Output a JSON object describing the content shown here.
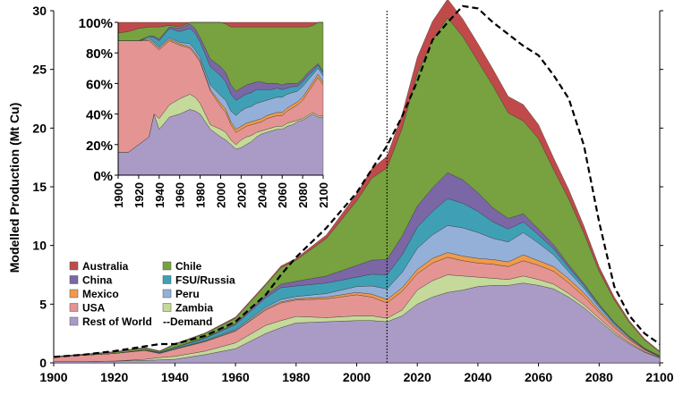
{
  "chart_data": [
    {
      "type": "area",
      "stacked": true,
      "title": "",
      "xlabel": "",
      "ylabel": "Modelled Production (Mt Cu)",
      "xlim": [
        1900,
        2100
      ],
      "ylim": [
        0,
        30
      ],
      "x_ticks": [
        "1900",
        "1920",
        "1940",
        "1960",
        "1980",
        "2000",
        "2020",
        "2040",
        "2060",
        "2080",
        "2100"
      ],
      "y_ticks": [
        "0",
        "5",
        "10",
        "15",
        "20",
        "25",
        "30"
      ],
      "x": [
        1900,
        1910,
        1920,
        1930,
        1935,
        1940,
        1950,
        1960,
        1970,
        1975,
        1980,
        1990,
        2000,
        2005,
        2010,
        2015,
        2020,
        2025,
        2030,
        2035,
        2040,
        2045,
        2050,
        2055,
        2060,
        2065,
        2070,
        2075,
        2080,
        2085,
        2090,
        2095,
        2100
      ],
      "series": [
        {
          "name": "Rest of World",
          "color": "#a99bc5",
          "values": [
            0.1,
            0.1,
            0.15,
            0.2,
            0.25,
            0.3,
            0.7,
            1.2,
            2.5,
            3.0,
            3.4,
            3.5,
            3.6,
            3.6,
            3.5,
            4.0,
            5.0,
            5.6,
            6.0,
            6.2,
            6.5,
            6.6,
            6.6,
            6.8,
            6.6,
            6.3,
            5.6,
            4.7,
            3.6,
            2.5,
            1.6,
            0.9,
            0.4
          ]
        },
        {
          "name": "Zambia",
          "color": "#c5d99a",
          "values": [
            0,
            0,
            0,
            0.1,
            0.2,
            0.25,
            0.3,
            0.5,
            0.7,
            0.6,
            0.55,
            0.35,
            0.4,
            0.4,
            0.3,
            0.5,
            1.2,
            1.4,
            1.5,
            1.2,
            0.8,
            0.6,
            0.5,
            0.6,
            0.5,
            0.4,
            0.3,
            0.25,
            0.2,
            0.15,
            0.1,
            0.05,
            0.05
          ]
        },
        {
          "name": "USA",
          "color": "#e49593",
          "values": [
            0.4,
            0.55,
            0.65,
            0.75,
            0.35,
            0.6,
            0.8,
            1.0,
            1.3,
            1.5,
            1.4,
            1.6,
            1.8,
            1.6,
            1.3,
            1.6,
            1.4,
            1.5,
            1.5,
            1.3,
            1.2,
            1.2,
            1.1,
            1.3,
            1.2,
            1.1,
            0.9,
            0.7,
            0.5,
            0.35,
            0.25,
            0.15,
            0.05
          ]
        },
        {
          "name": "Mexico",
          "color": "#f09a4c",
          "values": [
            0,
            0,
            0,
            0.02,
            0.02,
            0.03,
            0.05,
            0.05,
            0.1,
            0.1,
            0.1,
            0.15,
            0.2,
            0.25,
            0.3,
            0.3,
            0.35,
            0.4,
            0.4,
            0.4,
            0.4,
            0.4,
            0.4,
            0.5,
            0.4,
            0.4,
            0.35,
            0.3,
            0.2,
            0.15,
            0.1,
            0.05,
            0.03
          ]
        },
        {
          "name": "Peru",
          "color": "#95b0d8",
          "values": [
            0,
            0,
            0,
            0.02,
            0.02,
            0.03,
            0.05,
            0.1,
            0.15,
            0.2,
            0.2,
            0.3,
            0.5,
            0.7,
            0.9,
            1.3,
            1.8,
            2.0,
            2.3,
            2.4,
            2.2,
            1.8,
            1.7,
            1.9,
            1.5,
            1.0,
            0.6,
            0.4,
            0.25,
            0.15,
            0.1,
            0.05,
            0.03
          ]
        },
        {
          "name": "FSU/Russia",
          "color": "#3fa0b5",
          "values": [
            0,
            0,
            0,
            0.02,
            0.05,
            0.1,
            0.2,
            0.4,
            0.8,
            1.0,
            0.9,
            0.9,
            0.8,
            1.0,
            1.2,
            1.5,
            1.8,
            2.0,
            2.3,
            2.1,
            1.8,
            1.4,
            1.1,
            0.9,
            0.7,
            0.5,
            0.35,
            0.25,
            0.15,
            0.1,
            0.05,
            0.03,
            0.02
          ]
        },
        {
          "name": "China",
          "color": "#7b66a6",
          "values": [
            0,
            0,
            0,
            0,
            0.02,
            0.02,
            0.05,
            0.1,
            0.2,
            0.3,
            0.4,
            0.6,
            1.0,
            1.2,
            1.3,
            1.6,
            1.8,
            2.0,
            2.2,
            2.0,
            1.6,
            1.2,
            0.9,
            0.7,
            0.5,
            0.35,
            0.25,
            0.15,
            0.1,
            0.06,
            0.04,
            0.02,
            0.01
          ]
        },
        {
          "name": "Chile",
          "color": "#77a23f",
          "values": [
            0,
            0.05,
            0.1,
            0.15,
            0.08,
            0.25,
            0.35,
            0.45,
            0.9,
            1.4,
            1.8,
            3.2,
            5.5,
            7.0,
            7.8,
            9.2,
            11.3,
            12.6,
            13.2,
            12.2,
            11.2,
            10.4,
            9.0,
            7.9,
            7.7,
            6.4,
            5.6,
            4.3,
            2.8,
            1.9,
            1.2,
            0.7,
            0.35
          ]
        },
        {
          "name": "Australia",
          "color": "#c04a4a",
          "values": [
            0.05,
            0.05,
            0.05,
            0.05,
            0.03,
            0.05,
            0.05,
            0.1,
            0.1,
            0.15,
            0.15,
            0.3,
            0.6,
            0.8,
            1.0,
            1.2,
            1.4,
            1.6,
            1.6,
            1.5,
            1.5,
            1.4,
            1.4,
            1.4,
            1.2,
            1.0,
            0.8,
            0.6,
            0.4,
            0.25,
            0.15,
            0.1,
            0.05
          ]
        }
      ],
      "demand": {
        "name": "Demand",
        "values": [
          0.5,
          0.7,
          1.0,
          1.4,
          1.6,
          1.6,
          2.3,
          3.5,
          5.8,
          7.5,
          9.0,
          11.5,
          14.5,
          16.5,
          18.5,
          21.0,
          24.0,
          27.5,
          29.0,
          30.4,
          30.2,
          29.0,
          28.0,
          27.0,
          26.2,
          24.5,
          22.5,
          18.5,
          12.0,
          6.5,
          4.0,
          2.5,
          1.6
        ]
      },
      "reference_line_x": 2010,
      "legend": {
        "placement": "bottom-left",
        "entries": [
          {
            "label": "Australia",
            "color": "#c04a4a",
            "kind": "box"
          },
          {
            "label": "Chile",
            "color": "#77a23f",
            "kind": "box"
          },
          {
            "label": "China",
            "color": "#7b66a6",
            "kind": "box"
          },
          {
            "label": "FSU/Russia",
            "color": "#3fa0b5",
            "kind": "box"
          },
          {
            "label": "Mexico",
            "color": "#f09a4c",
            "kind": "box"
          },
          {
            "label": "Peru",
            "color": "#95b0d8",
            "kind": "box"
          },
          {
            "label": "USA",
            "color": "#e49593",
            "kind": "box"
          },
          {
            "label": "Zambia",
            "color": "#c5d99a",
            "kind": "box"
          },
          {
            "label": "Rest of World",
            "color": "#a99bc5",
            "kind": "box"
          },
          {
            "label": "--Demand",
            "color": "#000000",
            "kind": "text"
          }
        ]
      },
      "grid": false
    },
    {
      "type": "area",
      "stacked": true,
      "percent": true,
      "title": "",
      "xlim": [
        1900,
        2100
      ],
      "ylim": [
        0,
        100
      ],
      "x_ticks": [
        "1900",
        "1920",
        "1940",
        "1960",
        "1980",
        "2000",
        "2020",
        "2040",
        "2060",
        "2080",
        "2100"
      ],
      "y_ticks": [
        "0%",
        "20%",
        "40%",
        "60%",
        "80%",
        "100%"
      ],
      "x": [
        1900,
        1910,
        1920,
        1930,
        1935,
        1940,
        1950,
        1960,
        1970,
        1975,
        1980,
        1990,
        2000,
        2005,
        2010,
        2015,
        2020,
        2025,
        2030,
        2035,
        2040,
        2045,
        2050,
        2055,
        2060,
        2065,
        2070,
        2075,
        2080,
        2085,
        2090,
        2095,
        2100
      ],
      "series": [
        {
          "name": "Rest of World",
          "values": [
            15,
            15,
            20,
            25,
            40,
            30,
            38,
            40,
            43,
            42,
            40,
            30,
            25,
            23,
            20,
            17,
            18,
            20,
            22,
            25,
            27,
            28,
            29,
            30,
            30,
            32,
            33,
            35,
            36,
            38,
            40,
            38,
            38
          ]
        },
        {
          "name": "Zambia",
          "values": [
            0,
            0,
            0,
            0,
            0,
            7,
            8,
            10,
            10,
            9,
            7,
            3,
            5,
            5,
            3,
            3,
            5,
            5,
            4,
            3,
            2,
            2,
            2,
            2,
            2,
            2,
            2,
            1,
            1,
            1,
            1,
            1,
            1
          ]
        },
        {
          "name": "USA",
          "values": [
            73,
            73,
            68,
            63,
            45,
            45,
            42,
            35,
            30,
            28,
            27,
            22,
            15,
            13,
            10,
            8,
            7,
            7,
            7,
            6,
            6,
            7,
            7,
            7,
            7,
            8,
            9,
            10,
            12,
            15,
            18,
            25,
            20
          ]
        },
        {
          "name": "Mexico",
          "values": [
            0,
            0,
            0,
            1,
            1,
            1,
            1,
            1,
            1,
            1,
            1,
            1,
            2,
            2,
            2,
            2,
            2,
            2,
            2,
            2,
            2,
            2,
            2,
            2,
            2,
            2,
            2,
            2,
            2,
            2,
            2,
            2,
            2
          ]
        },
        {
          "name": "Peru",
          "values": [
            0,
            0,
            0,
            1,
            1,
            1,
            1,
            1,
            2,
            2,
            2,
            3,
            5,
            6,
            7,
            9,
            10,
            10,
            10,
            11,
            11,
            10,
            10,
            10,
            10,
            9,
            8,
            7,
            7,
            6,
            5,
            4,
            4
          ]
        },
        {
          "name": "FSU/Russia",
          "values": [
            0,
            0,
            0,
            1,
            3,
            4,
            6,
            7,
            10,
            11,
            10,
            12,
            13,
            12,
            11,
            10,
            9,
            9,
            9,
            9,
            8,
            7,
            6,
            6,
            5,
            4,
            4,
            3,
            3,
            3,
            2,
            2,
            2
          ]
        },
        {
          "name": "China",
          "values": [
            0,
            0,
            0,
            0,
            1,
            1,
            1,
            2,
            3,
            3,
            3,
            5,
            6,
            6,
            6,
            6,
            6,
            6,
            6,
            5,
            5,
            4,
            4,
            3,
            3,
            3,
            2,
            2,
            2,
            2,
            2,
            1,
            1
          ]
        },
        {
          "name": "Chile",
          "values": [
            5,
            6,
            8,
            6,
            6,
            8,
            1,
            1,
            1,
            4,
            10,
            24,
            29,
            32,
            38,
            42,
            40,
            38,
            37,
            36,
            36,
            37,
            37,
            37,
            38,
            37,
            37,
            37,
            34,
            30,
            28,
            27,
            32
          ]
        },
        {
          "name": "Australia",
          "values": [
            7,
            6,
            4,
            3,
            3,
            3,
            2,
            3,
            0,
            0,
            0,
            0,
            0,
            1,
            3,
            3,
            3,
            3,
            3,
            3,
            3,
            3,
            3,
            3,
            3,
            3,
            3,
            3,
            3,
            3,
            2,
            0,
            0
          ]
        }
      ]
    }
  ]
}
